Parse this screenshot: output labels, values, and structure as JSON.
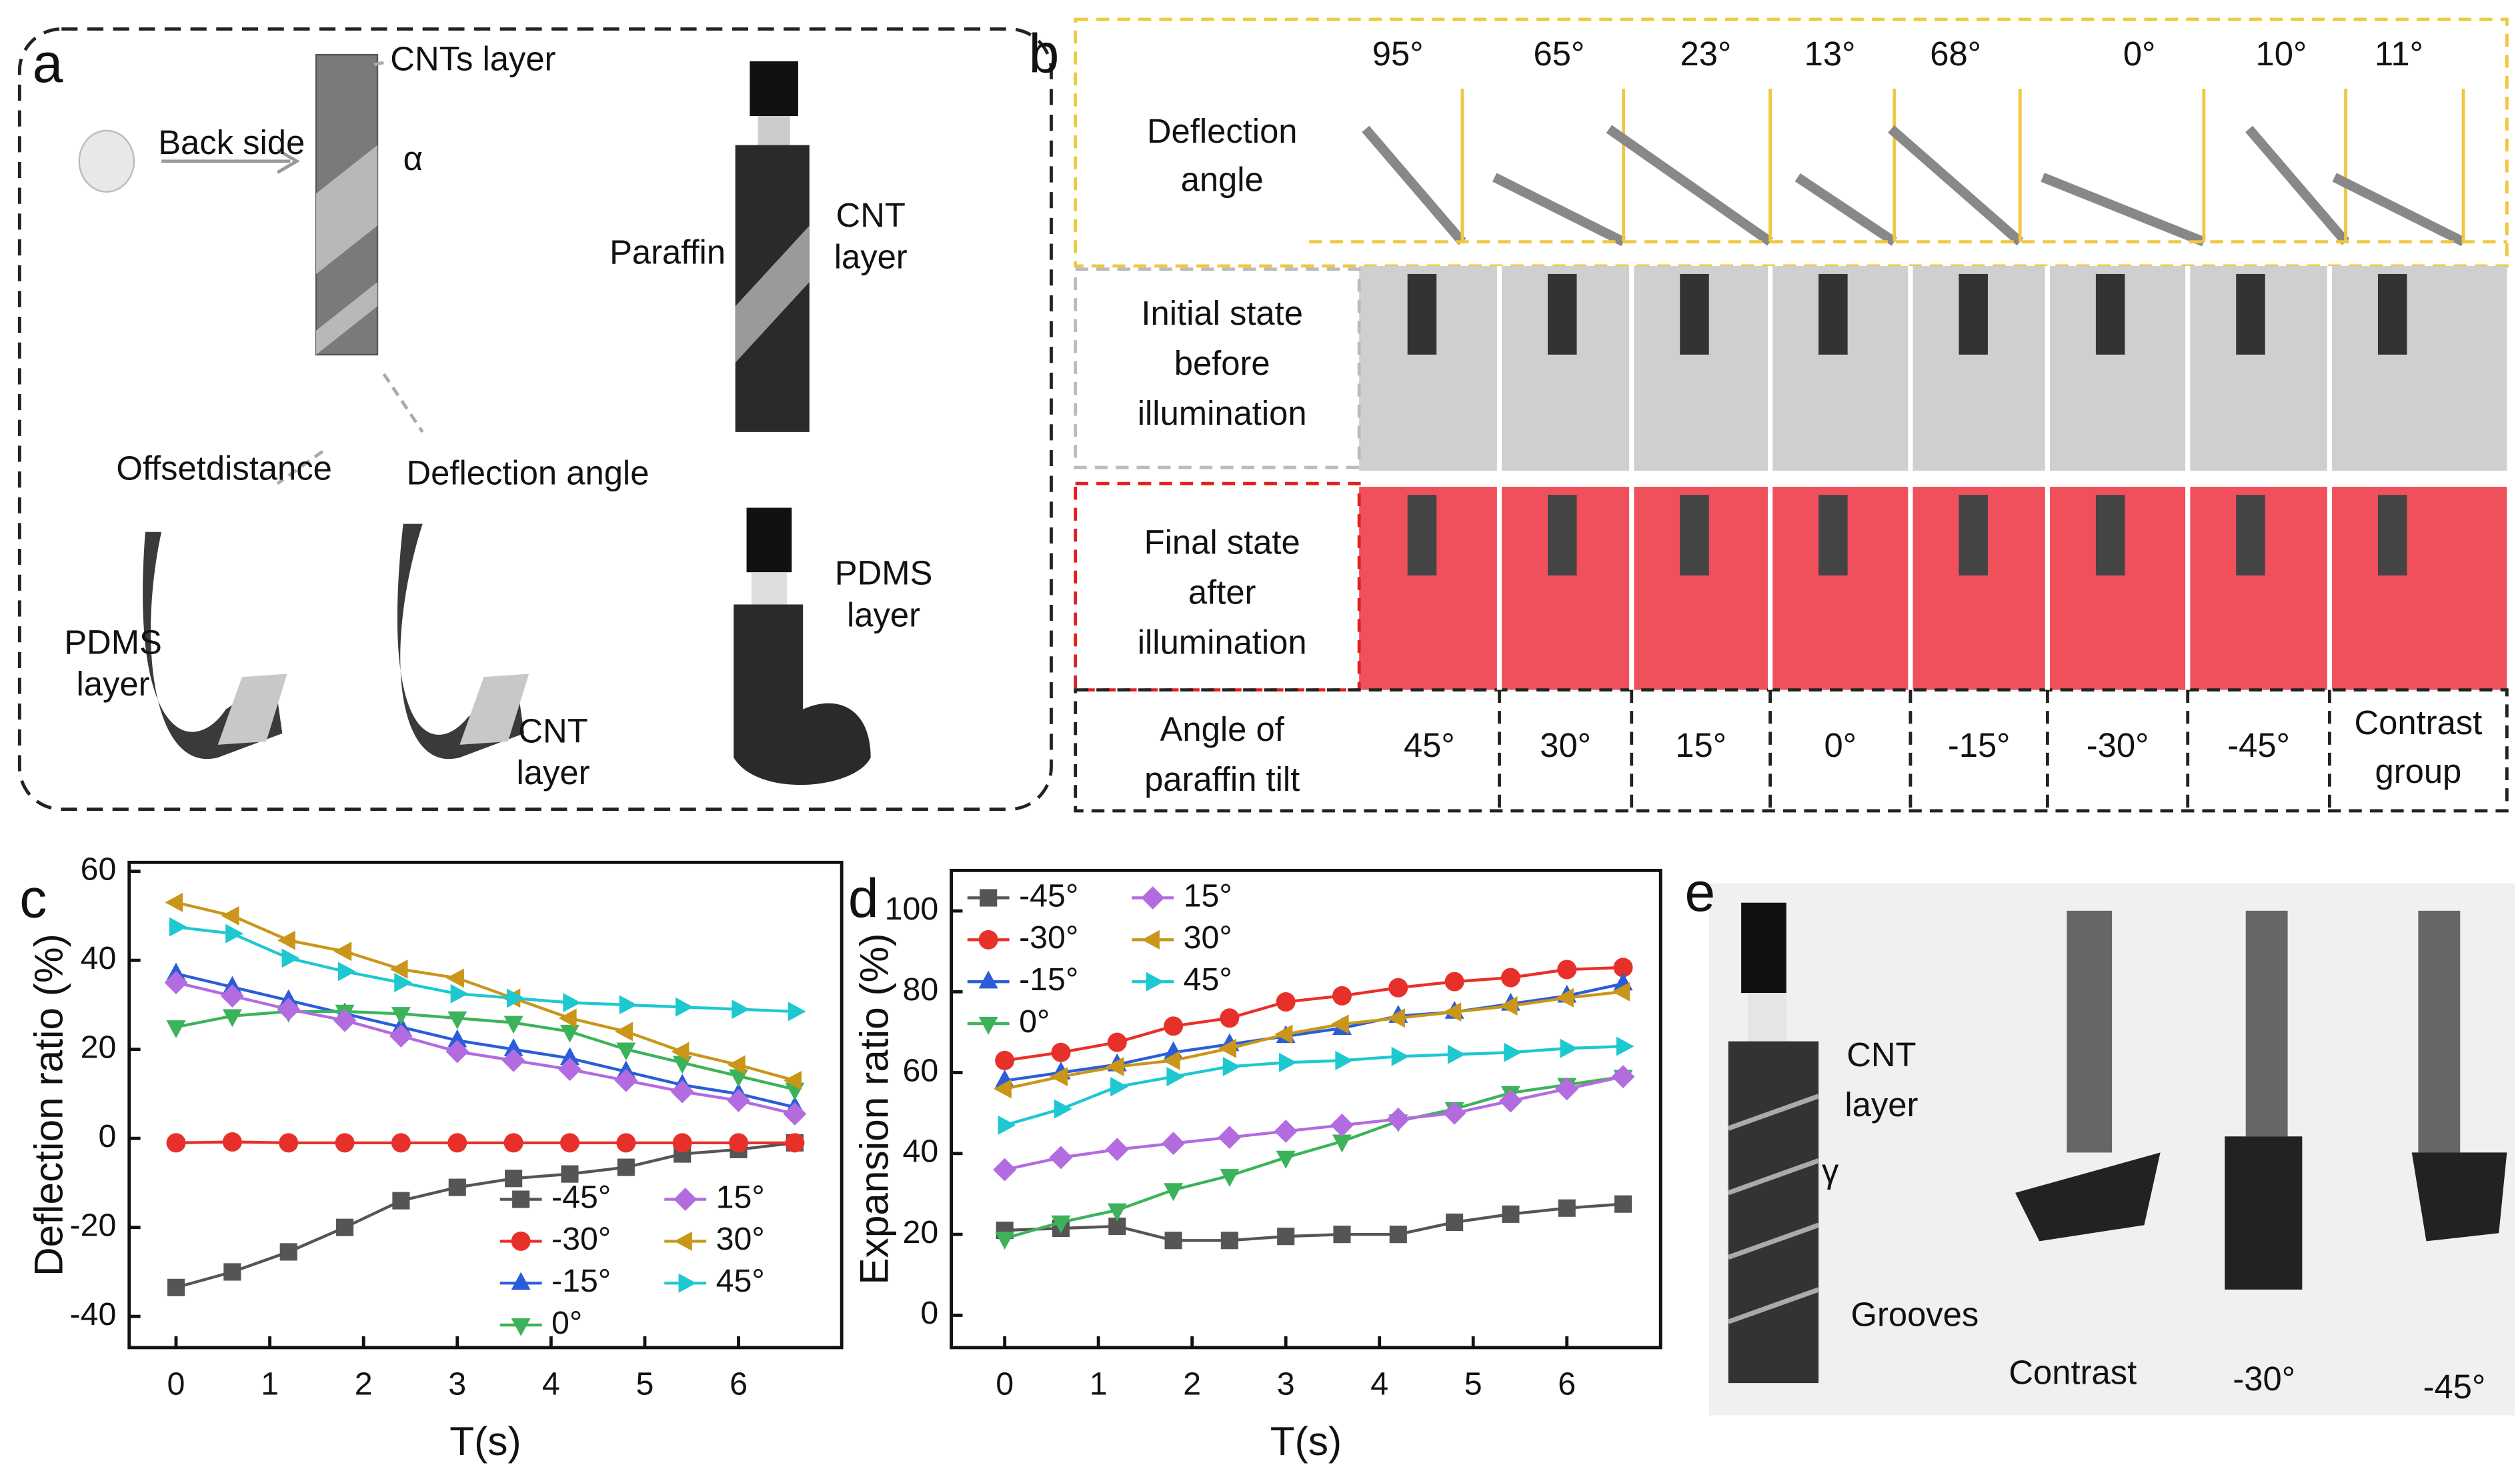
{
  "panel_a": {
    "label": "a",
    "labels": [
      [
        "CNTs layer"
      ],
      [
        "Back side"
      ],
      [
        "α"
      ],
      [
        "CNT",
        "layer"
      ],
      [
        "Paraffin"
      ],
      [
        "Offsetdistance"
      ],
      [
        "Deflection angle"
      ],
      [
        "PDMS",
        "layer"
      ],
      [
        "CNT",
        "layer"
      ],
      [
        "PDMS",
        "layer"
      ]
    ]
  },
  "panel_b": {
    "label": "b",
    "deflection_angles": [
      "95°",
      "65°",
      "23°",
      "13°",
      "68°",
      "0°",
      "10°",
      "11°"
    ],
    "row_labels": [
      [
        "Deflection",
        "angle"
      ],
      [
        "Initial state",
        "before",
        "illumination"
      ],
      [
        "Final state",
        "after",
        "illumination"
      ],
      [
        "Angle  of",
        "paraffin tilt"
      ]
    ],
    "tilt_angles": [
      [
        "45°"
      ],
      [
        "30°"
      ],
      [
        "15°"
      ],
      [
        "0°"
      ],
      [
        "-15°"
      ],
      [
        "-30°"
      ],
      [
        "-45°"
      ],
      [
        "Contrast",
        "group"
      ]
    ]
  },
  "panel_e": {
    "label": "e",
    "labels": [
      [
        "CNT",
        "layer"
      ],
      [
        "γ"
      ],
      [
        "Grooves"
      ],
      [
        "Contrast"
      ],
      [
        "-30°"
      ],
      [
        "-45°"
      ]
    ]
  },
  "chart_data": [
    {
      "type": "line",
      "label": "c",
      "ylabel": "Deflection ratio (%)",
      "xlabel": "T(s)",
      "x": [
        0,
        0.6,
        1.2,
        1.8,
        2.4,
        3.0,
        3.6,
        4.2,
        4.8,
        5.4,
        6.0,
        6.6
      ],
      "xlim": [
        -0.5,
        7.1
      ],
      "xticks": [
        0,
        1,
        2,
        3,
        4,
        5,
        6
      ],
      "ylim": [
        -47,
        62
      ],
      "yticks": [
        -40,
        -20,
        0,
        20,
        40,
        60
      ],
      "legend": "lower right",
      "series": [
        {
          "name": "-45°",
          "color": "#555555",
          "marker": "square",
          "values": [
            -33.5,
            -30,
            -25.5,
            -20,
            -14,
            -11,
            -9,
            -8,
            -6.5,
            -3.5,
            -2.5,
            -1
          ]
        },
        {
          "name": "-30°",
          "color": "#e8302a",
          "marker": "circle",
          "values": [
            -1,
            -0.8,
            -1,
            -1,
            -1,
            -1,
            -1,
            -1,
            -1,
            -1,
            -1,
            -1
          ]
        },
        {
          "name": "-15°",
          "color": "#2a5ed8",
          "marker": "triangle-up",
          "values": [
            37,
            34,
            31,
            28,
            25,
            22,
            20,
            18,
            15,
            12,
            10,
            7
          ]
        },
        {
          "name": "0°",
          "color": "#3cb35a",
          "marker": "triangle-down",
          "values": [
            25,
            27.5,
            28.5,
            28.5,
            28,
            27,
            26,
            24,
            20,
            17,
            14,
            11
          ]
        },
        {
          "name": "15°",
          "color": "#b36be0",
          "marker": "diamond",
          "values": [
            35,
            32,
            29,
            26.5,
            23,
            19.5,
            17.5,
            15.5,
            13,
            10.5,
            8.5,
            5.5
          ]
        },
        {
          "name": "30°",
          "color": "#c9961a",
          "marker": "triangle-left",
          "values": [
            53,
            50,
            44.5,
            42,
            38,
            36,
            31.5,
            27,
            24,
            19.5,
            16.5,
            13
          ]
        },
        {
          "name": "45°",
          "color": "#1ec8d0",
          "marker": "triangle-right",
          "values": [
            47.5,
            46,
            40.5,
            37.5,
            35,
            32.5,
            31.5,
            30.5,
            30,
            29.5,
            29,
            28.5
          ]
        }
      ]
    },
    {
      "type": "line",
      "label": "d",
      "ylabel": "Expansion ratio (%)",
      "xlabel": "T(s)",
      "x": [
        0,
        0.6,
        1.2,
        1.8,
        2.4,
        3.0,
        3.6,
        4.2,
        4.8,
        5.4,
        6.0,
        6.6
      ],
      "xlim": [
        -0.57,
        7.0
      ],
      "xticks": [
        0,
        1,
        2,
        3,
        4,
        5,
        6
      ],
      "ylim": [
        -8,
        110
      ],
      "yticks": [
        0,
        20,
        40,
        60,
        80,
        100
      ],
      "legend": "upper left",
      "series": [
        {
          "name": "-45°",
          "color": "#555555",
          "marker": "square",
          "values": [
            21,
            21.5,
            22,
            18.5,
            18.5,
            19.5,
            20,
            20,
            23,
            25,
            26.5,
            27.5
          ]
        },
        {
          "name": "-30°",
          "color": "#e8302a",
          "marker": "circle",
          "values": [
            63,
            65,
            67.5,
            71.5,
            73.5,
            77.5,
            79,
            81,
            82.5,
            83.5,
            85.5,
            86
          ]
        },
        {
          "name": "-15°",
          "color": "#2a5ed8",
          "marker": "triangle-up",
          "values": [
            58,
            60,
            62,
            65,
            67,
            69,
            71,
            74,
            75,
            77,
            79,
            82
          ]
        },
        {
          "name": "0°",
          "color": "#3cb35a",
          "marker": "triangle-down",
          "values": [
            19,
            23,
            26,
            31,
            34.5,
            39,
            43,
            48,
            51,
            55,
            57,
            59
          ]
        },
        {
          "name": "15°",
          "color": "#b36be0",
          "marker": "diamond",
          "values": [
            36,
            39,
            41,
            42.5,
            44,
            45.5,
            47,
            48.5,
            50,
            53,
            56,
            59
          ]
        },
        {
          "name": "30°",
          "color": "#c9961a",
          "marker": "triangle-left",
          "values": [
            56,
            59,
            61.5,
            63,
            66,
            69.5,
            72,
            73.5,
            75,
            76.5,
            78.5,
            80
          ]
        },
        {
          "name": "45°",
          "color": "#1ec8d0",
          "marker": "triangle-right",
          "values": [
            47,
            51,
            56.5,
            59,
            61.5,
            62.5,
            63,
            64,
            64.5,
            65,
            66,
            66.5
          ]
        }
      ]
    }
  ]
}
